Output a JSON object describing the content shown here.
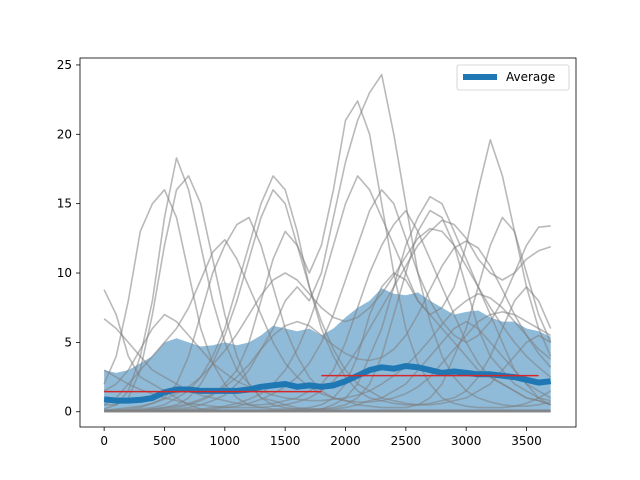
{
  "chart_data": {
    "type": "line",
    "xlim": [
      -200,
      3910
    ],
    "ylim": [
      -1.1,
      25.5
    ],
    "x_ticks": [
      0,
      500,
      1000,
      1500,
      2000,
      2500,
      3000,
      3500
    ],
    "y_ticks": [
      0,
      5,
      10,
      15,
      20,
      25
    ],
    "x_tick_labels": [
      "0",
      "500",
      "1000",
      "1500",
      "2000",
      "2500",
      "3000",
      "3500"
    ],
    "y_tick_labels": [
      "0",
      "5",
      "10",
      "15",
      "20",
      "25"
    ],
    "legend": {
      "position": "top-right",
      "entries": [
        "Average"
      ]
    },
    "colors": {
      "individual": "#7f7f7f",
      "average": "#1f77b4",
      "band": "#1f77b4",
      "segment_mean": "#d62728"
    },
    "average": {
      "name": "Average",
      "x": [
        0,
        100,
        200,
        300,
        400,
        500,
        600,
        700,
        800,
        900,
        1000,
        1100,
        1200,
        1300,
        1400,
        1500,
        1600,
        1700,
        1800,
        1900,
        2000,
        2100,
        2200,
        2300,
        2400,
        2500,
        2600,
        2700,
        2800,
        2900,
        3000,
        3100,
        3200,
        3300,
        3400,
        3500,
        3600,
        3700
      ],
      "y": [
        0.9,
        0.8,
        0.8,
        0.85,
        1.0,
        1.4,
        1.6,
        1.6,
        1.5,
        1.5,
        1.5,
        1.5,
        1.6,
        1.8,
        1.9,
        2.0,
        1.8,
        1.9,
        1.8,
        1.9,
        2.2,
        2.6,
        3.0,
        3.2,
        3.1,
        3.3,
        3.2,
        3.0,
        2.8,
        2.9,
        2.8,
        2.7,
        2.7,
        2.6,
        2.5,
        2.3,
        2.1,
        2.2
      ]
    },
    "std_band": {
      "upper": [
        3.0,
        2.8,
        3.0,
        3.5,
        4.0,
        5.0,
        5.3,
        5.0,
        4.7,
        4.8,
        5.0,
        4.8,
        5.0,
        5.5,
        6.2,
        6.0,
        5.8,
        6.0,
        5.5,
        6.0,
        6.8,
        7.5,
        8.0,
        8.9,
        8.5,
        8.4,
        8.6,
        8.0,
        7.5,
        7.0,
        7.2,
        7.3,
        6.8,
        6.5,
        6.5,
        6.0,
        5.8,
        5.4
      ],
      "lower": [
        0,
        0,
        0,
        0,
        0,
        0,
        0,
        0,
        0,
        0,
        0,
        0,
        0,
        0,
        0,
        0,
        0,
        0,
        0,
        0,
        0,
        0,
        0,
        0,
        0,
        0,
        0,
        0,
        0,
        0,
        0,
        0,
        0,
        0,
        0,
        0,
        0,
        0
      ]
    },
    "segment_means": [
      {
        "x": [
          0,
          1800
        ],
        "y": 1.45
      },
      {
        "x": [
          1800,
          3600
        ],
        "y": 2.6
      }
    ],
    "trajectories": [
      [
        8.8,
        7.0,
        4.0,
        2.5,
        2.0,
        1.5,
        1.0,
        0.5,
        0.2,
        0.1,
        0.1,
        0.1,
        0.1,
        0.1,
        0.1,
        0.1,
        0.1,
        0.1,
        0.2,
        0.5,
        1.0,
        2.0,
        4.0,
        6.0,
        9.0,
        12.0,
        14.0,
        15.5,
        15.0,
        13.0,
        11.0,
        9.0,
        7.0,
        5.0,
        3.0,
        2.0,
        1.0,
        0.5
      ],
      [
        6.7,
        6.0,
        5.0,
        4.0,
        3.0,
        2.5,
        2.0,
        1.5,
        1.2,
        1.0,
        0.8,
        0.6,
        0.5,
        0.5,
        0.6,
        0.8,
        1.0,
        1.5,
        2.0,
        3.0,
        5.0,
        7.5,
        10.0,
        12.0,
        13.5,
        14.5,
        13.0,
        11.0,
        9.0,
        7.0,
        5.0,
        3.5,
        2.5,
        2.0,
        1.5,
        1.0,
        0.8,
        0.5
      ],
      [
        0.5,
        0.5,
        1.0,
        3.0,
        7.0,
        12.0,
        16.0,
        17.0,
        15.0,
        11.0,
        7.0,
        4.0,
        2.0,
        1.0,
        0.5,
        0.3,
        0.2,
        0.2,
        0.2,
        0.3,
        0.5,
        1.0,
        2.0,
        4.0,
        7.0,
        10.0,
        13.0,
        14.5,
        14.0,
        12.0,
        9.0,
        6.0,
        4.0,
        3.0,
        2.0,
        1.5,
        1.0,
        0.8
      ],
      [
        0.2,
        0.5,
        1.5,
        4.0,
        8.0,
        14.0,
        18.3,
        16.0,
        12.0,
        8.0,
        5.0,
        3.0,
        2.0,
        1.0,
        0.8,
        0.5,
        0.3,
        0.2,
        0.2,
        0.2,
        0.3,
        0.5,
        0.8,
        1.0,
        1.5,
        2.0,
        3.0,
        4.0,
        5.0,
        6.0,
        6.5,
        6.0,
        5.0,
        4.0,
        3.0,
        2.0,
        1.5,
        1.0
      ],
      [
        2.0,
        4.0,
        8.0,
        13.0,
        15.0,
        16.0,
        14.0,
        10.0,
        6.0,
        3.5,
        2.0,
        1.0,
        0.5,
        0.3,
        0.2,
        0.2,
        0.2,
        0.3,
        0.5,
        1.0,
        2.0,
        4.0,
        7.0,
        9.0,
        10.0,
        9.5,
        8.0,
        7.0,
        6.0,
        5.0,
        4.0,
        3.0,
        2.5,
        2.0,
        1.5,
        1.0,
        0.8,
        0.5
      ],
      [
        0.1,
        0.1,
        0.2,
        0.3,
        0.6,
        1.0,
        2.0,
        4.0,
        7.0,
        10.0,
        12.0,
        13.5,
        14.0,
        12.0,
        9.0,
        6.0,
        4.0,
        2.5,
        1.5,
        1.0,
        0.8,
        0.5,
        0.4,
        0.3,
        0.3,
        0.3,
        0.5,
        1.0,
        2.0,
        4.0,
        6.0,
        9.0,
        12.0,
        14.0,
        13.0,
        10.0,
        7.0,
        5.0
      ],
      [
        0.1,
        0.1,
        0.1,
        0.2,
        0.3,
        0.5,
        1.0,
        1.5,
        2.5,
        4.0,
        6.0,
        9.0,
        12.0,
        15.0,
        17.0,
        16.0,
        13.0,
        9.0,
        6.0,
        4.0,
        2.5,
        1.5,
        1.0,
        0.8,
        0.6,
        0.5,
        0.5,
        0.6,
        0.8,
        1.0,
        1.5,
        2.5,
        4.0,
        6.0,
        8.0,
        9.0,
        8.0,
        6.0
      ],
      [
        0.1,
        0.1,
        0.1,
        0.1,
        0.2,
        0.3,
        0.5,
        1.0,
        2.0,
        3.5,
        5.5,
        8.0,
        11.0,
        14.0,
        16.0,
        15.0,
        12.0,
        9.0,
        6.5,
        4.5,
        3.0,
        2.0,
        1.5,
        1.0,
        0.8,
        0.6,
        0.5,
        0.5,
        0.6,
        0.8,
        1.0,
        1.5,
        2.0,
        3.0,
        4.0,
        5.0,
        5.5,
        5.0
      ],
      [
        0.1,
        0.1,
        0.1,
        0.1,
        0.1,
        0.2,
        0.3,
        0.5,
        0.8,
        1.2,
        2.0,
        3.0,
        5.0,
        8.0,
        11.0,
        13.0,
        12.0,
        10.0,
        12.0,
        16.0,
        21.0,
        22.4,
        20.0,
        15.0,
        10.0,
        6.0,
        3.5,
        2.0,
        1.0,
        0.6,
        0.4,
        0.3,
        0.3,
        0.3,
        0.4,
        0.6,
        1.0,
        1.5
      ],
      [
        0.1,
        0.1,
        0.1,
        0.1,
        0.1,
        0.1,
        0.2,
        0.3,
        0.5,
        0.8,
        1.2,
        2.0,
        3.0,
        4.5,
        6.0,
        8.0,
        9.0,
        8.0,
        10.0,
        14.0,
        18.0,
        21.0,
        23.0,
        24.3,
        20.0,
        15.0,
        10.0,
        6.5,
        4.0,
        2.5,
        1.5,
        1.0,
        0.7,
        0.5,
        0.4,
        0.4,
        0.5,
        0.7
      ],
      [
        0.1,
        0.1,
        0.1,
        0.1,
        0.1,
        0.1,
        0.1,
        0.2,
        0.2,
        0.3,
        0.4,
        0.6,
        0.9,
        1.3,
        2.0,
        3.0,
        4.5,
        6.5,
        9.0,
        12.0,
        15.0,
        17.0,
        16.0,
        14.0,
        12.0,
        10.0,
        8.0,
        7.0,
        7.5,
        9.0,
        12.0,
        16.0,
        19.6,
        17.0,
        13.0,
        9.0,
        6.0,
        4.0
      ],
      [
        0.1,
        0.1,
        0.1,
        0.1,
        0.1,
        0.1,
        0.1,
        0.1,
        0.1,
        0.2,
        0.3,
        0.4,
        0.6,
        0.9,
        1.3,
        1.8,
        2.5,
        3.5,
        5.0,
        7.0,
        9.5,
        12.0,
        14.5,
        16.0,
        15.0,
        12.5,
        10.0,
        8.0,
        6.5,
        5.5,
        5.0,
        5.5,
        6.5,
        8.0,
        10.0,
        12.0,
        13.3,
        13.4
      ],
      [
        3.0,
        2.5,
        2.0,
        1.6,
        1.3,
        1.0,
        0.8,
        0.6,
        0.5,
        0.4,
        0.3,
        0.3,
        0.3,
        0.3,
        0.4,
        0.5,
        0.7,
        1.0,
        1.5,
        2.2,
        3.2,
        4.5,
        6.0,
        7.5,
        9.0,
        10.5,
        12.0,
        13.0,
        13.8,
        13.5,
        12.5,
        11.0,
        10.0,
        9.5,
        10.0,
        11.0,
        11.6,
        11.9
      ],
      [
        1.5,
        2.0,
        3.0,
        4.5,
        6.0,
        7.0,
        6.5,
        5.5,
        4.5,
        3.5,
        2.8,
        2.2,
        1.8,
        1.5,
        1.2,
        1.0,
        0.9,
        0.8,
        0.8,
        0.9,
        1.0,
        1.2,
        1.5,
        2.0,
        2.6,
        3.3,
        4.2,
        5.2,
        6.3,
        7.3,
        8.0,
        8.5,
        8.2,
        7.5,
        6.5,
        5.5,
        4.5,
        3.8
      ],
      [
        0.5,
        1.0,
        2.0,
        3.0,
        4.0,
        5.0,
        6.0,
        7.5,
        9.5,
        11.5,
        12.4,
        11.0,
        9.0,
        7.0,
        5.0,
        3.5,
        2.5,
        1.8,
        1.3,
        1.0,
        0.8,
        0.7,
        0.7,
        0.8,
        1.0,
        1.3,
        1.8,
        2.5,
        3.5,
        4.5,
        5.5,
        6.5,
        7.0,
        7.2,
        7.0,
        6.5,
        6.0,
        5.5
      ],
      [
        0.1,
        0.2,
        0.3,
        0.4,
        0.6,
        0.9,
        1.3,
        1.8,
        2.5,
        3.4,
        4.4,
        5.6,
        7.0,
        8.4,
        9.5,
        10.0,
        9.5,
        8.5,
        7.5,
        6.8,
        6.5,
        6.8,
        7.5,
        8.5,
        9.8,
        11.2,
        12.5,
        13.2,
        13.0,
        12.0,
        10.5,
        9.0,
        7.5,
        6.2,
        5.0,
        4.0,
        3.2,
        2.5
      ],
      [
        0.1,
        0.1,
        0.1,
        0.1,
        0.2,
        0.3,
        0.4,
        0.6,
        0.9,
        1.3,
        1.8,
        2.5,
        3.4,
        4.5,
        5.5,
        6.2,
        6.5,
        6.2,
        5.5,
        4.8,
        4.2,
        3.8,
        3.7,
        3.9,
        4.5,
        5.5,
        7.0,
        8.8,
        10.5,
        11.8,
        12.3,
        11.8,
        10.5,
        8.8,
        7.0,
        5.5,
        4.2,
        3.2
      ]
    ]
  }
}
